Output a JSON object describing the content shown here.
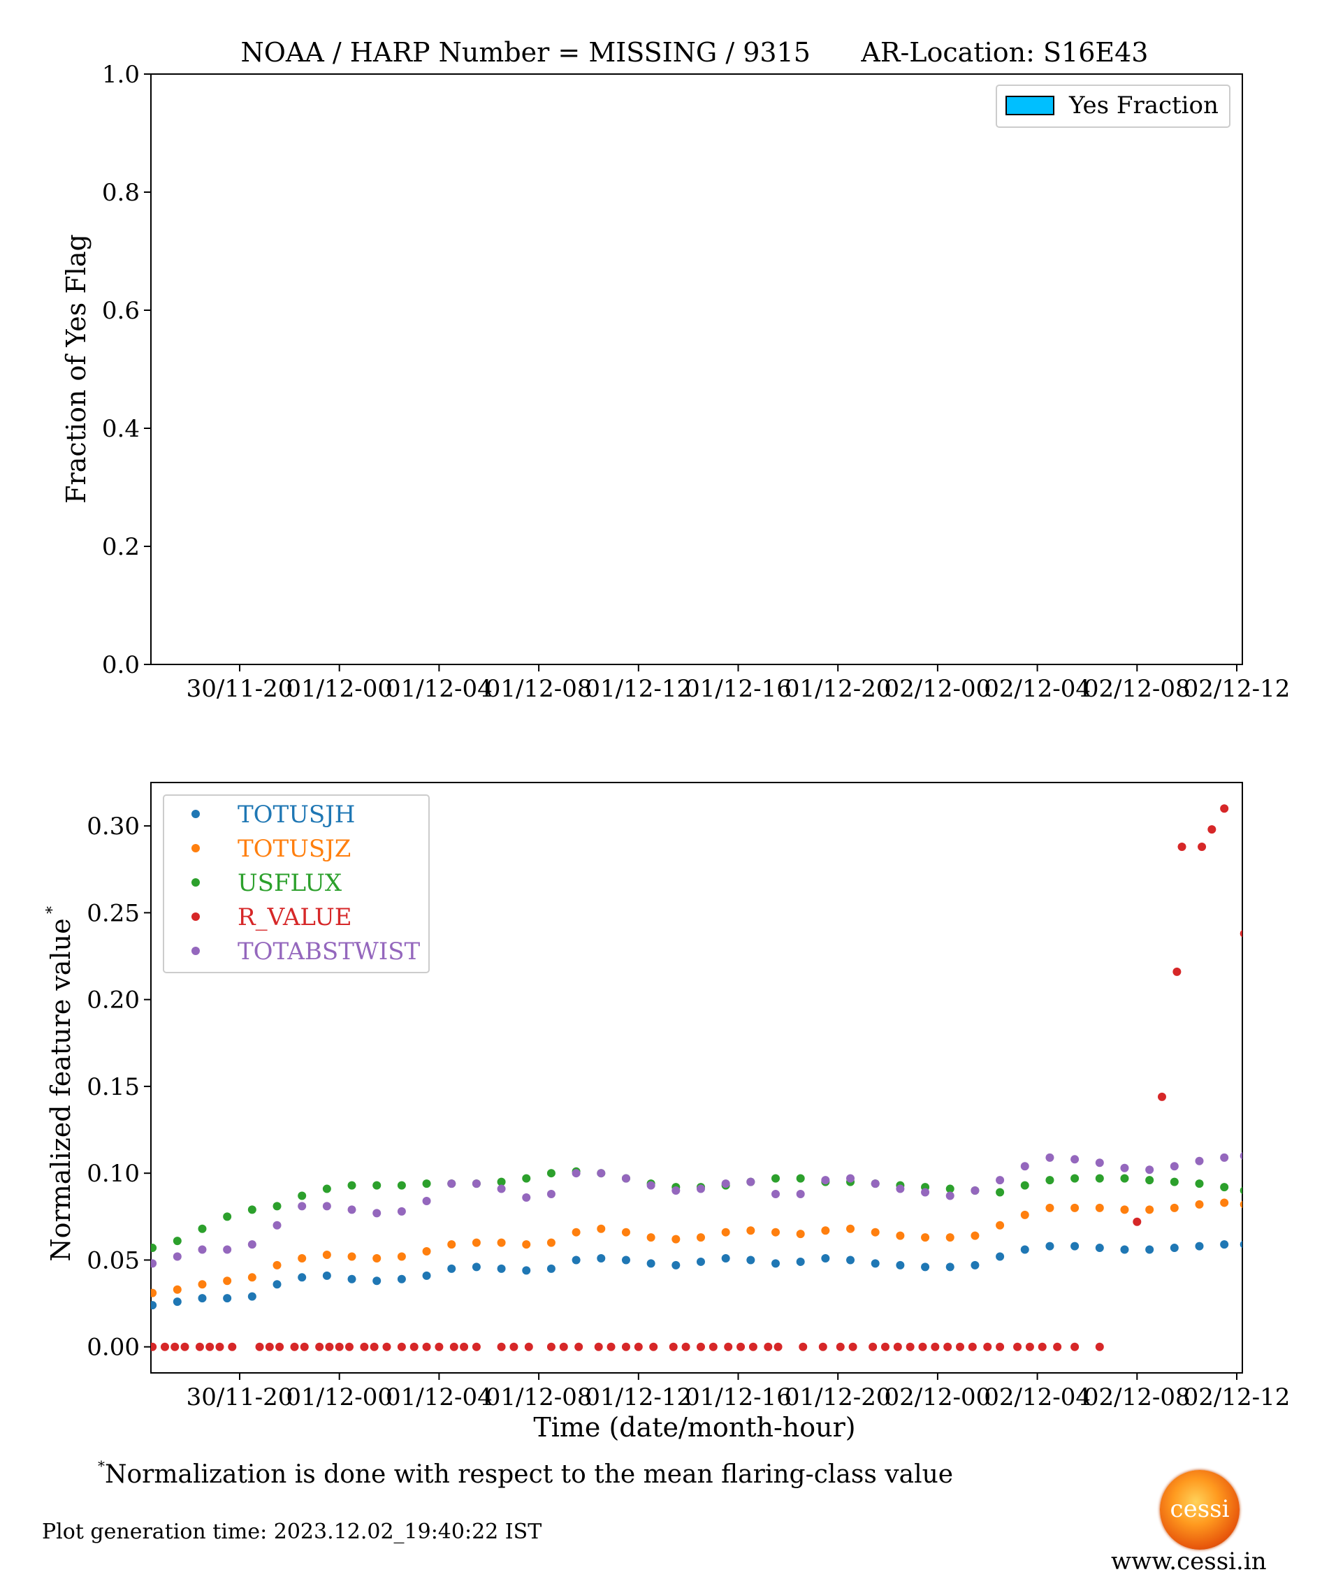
{
  "title": "NOAA / HARP Number = MISSING / 9315      AR-Location: S16E43",
  "top_chart": {
    "ylabel": "Fraction of Yes Flag",
    "legend_label": "Yes Fraction",
    "legend_color": "#00bfff",
    "yticks": [
      "0.0",
      "0.2",
      "0.4",
      "0.6",
      "0.8",
      "1.0"
    ],
    "xticks": [
      "30/11-20",
      "01/12-00",
      "01/12-04",
      "01/12-08",
      "01/12-12",
      "01/12-16",
      "01/12-20",
      "02/12-00",
      "02/12-04",
      "02/12-08",
      "02/12-12"
    ]
  },
  "bottom_chart": {
    "xlabel": "Time (date/month-hour)",
    "ylabel": "Normalized feature value",
    "ylabel_sup": "*",
    "yticks": [
      "0.00",
      "0.05",
      "0.10",
      "0.15",
      "0.20",
      "0.25",
      "0.30"
    ],
    "xticks": [
      "30/11-20",
      "01/12-00",
      "01/12-04",
      "01/12-08",
      "01/12-12",
      "01/12-16",
      "01/12-20",
      "02/12-00",
      "02/12-04",
      "02/12-08",
      "02/12-12"
    ]
  },
  "chart_data": [
    {
      "type": "bar",
      "title": "NOAA / HARP Number = MISSING / 9315      AR-Location: S16E43",
      "ylabel": "Fraction of Yes Flag",
      "ylim": [
        0,
        1.0
      ],
      "series": [
        {
          "name": "Yes Fraction",
          "values": [],
          "color": "#00bfff"
        }
      ],
      "legend_position": "top-right"
    },
    {
      "type": "scatter",
      "xlabel": "Time (date/month-hour)",
      "ylabel": "Normalized feature value*",
      "ylim": [
        -0.015,
        0.325
      ],
      "x_hours_from_30_11_20": [
        -3.5,
        0,
        4,
        8,
        12,
        16,
        20,
        24,
        28,
        32,
        36,
        40,
        40.3
      ],
      "legend_position": "top-left",
      "series": [
        {
          "name": "TOTUSJH",
          "color": "#1f77b4",
          "points": [
            [
              -3.5,
              0.024
            ],
            [
              -2.5,
              0.026
            ],
            [
              -1.5,
              0.028
            ],
            [
              -0.5,
              0.028
            ],
            [
              0.5,
              0.029
            ],
            [
              1.5,
              0.036
            ],
            [
              2.5,
              0.04
            ],
            [
              3.5,
              0.041
            ],
            [
              4.5,
              0.039
            ],
            [
              5.5,
              0.038
            ],
            [
              6.5,
              0.039
            ],
            [
              7.5,
              0.041
            ],
            [
              8.5,
              0.045
            ],
            [
              9.5,
              0.046
            ],
            [
              10.5,
              0.045
            ],
            [
              11.5,
              0.044
            ],
            [
              12.5,
              0.045
            ],
            [
              13.5,
              0.05
            ],
            [
              14.5,
              0.051
            ],
            [
              15.5,
              0.05
            ],
            [
              16.5,
              0.048
            ],
            [
              17.5,
              0.047
            ],
            [
              18.5,
              0.049
            ],
            [
              19.5,
              0.051
            ],
            [
              20.5,
              0.05
            ],
            [
              21.5,
              0.048
            ],
            [
              22.5,
              0.049
            ],
            [
              23.5,
              0.051
            ],
            [
              24.5,
              0.05
            ],
            [
              25.5,
              0.048
            ],
            [
              26.5,
              0.047
            ],
            [
              27.5,
              0.046
            ],
            [
              28.5,
              0.046
            ],
            [
              29.5,
              0.047
            ],
            [
              30.5,
              0.052
            ],
            [
              31.5,
              0.056
            ],
            [
              32.5,
              0.058
            ],
            [
              33.5,
              0.058
            ],
            [
              34.5,
              0.057
            ],
            [
              35.5,
              0.056
            ],
            [
              36.5,
              0.056
            ],
            [
              37.5,
              0.057
            ],
            [
              38.5,
              0.058
            ],
            [
              39.5,
              0.059
            ],
            [
              40.3,
              0.059
            ]
          ]
        },
        {
          "name": "TOTUSJZ",
          "color": "#ff7f0e",
          "points": [
            [
              -3.5,
              0.031
            ],
            [
              -2.5,
              0.033
            ],
            [
              -1.5,
              0.036
            ],
            [
              -0.5,
              0.038
            ],
            [
              0.5,
              0.04
            ],
            [
              1.5,
              0.047
            ],
            [
              2.5,
              0.051
            ],
            [
              3.5,
              0.053
            ],
            [
              4.5,
              0.052
            ],
            [
              5.5,
              0.051
            ],
            [
              6.5,
              0.052
            ],
            [
              7.5,
              0.055
            ],
            [
              8.5,
              0.059
            ],
            [
              9.5,
              0.06
            ],
            [
              10.5,
              0.06
            ],
            [
              11.5,
              0.059
            ],
            [
              12.5,
              0.06
            ],
            [
              13.5,
              0.066
            ],
            [
              14.5,
              0.068
            ],
            [
              15.5,
              0.066
            ],
            [
              16.5,
              0.063
            ],
            [
              17.5,
              0.062
            ],
            [
              18.5,
              0.063
            ],
            [
              19.5,
              0.066
            ],
            [
              20.5,
              0.067
            ],
            [
              21.5,
              0.066
            ],
            [
              22.5,
              0.065
            ],
            [
              23.5,
              0.067
            ],
            [
              24.5,
              0.068
            ],
            [
              25.5,
              0.066
            ],
            [
              26.5,
              0.064
            ],
            [
              27.5,
              0.063
            ],
            [
              28.5,
              0.063
            ],
            [
              29.5,
              0.064
            ],
            [
              30.5,
              0.07
            ],
            [
              31.5,
              0.076
            ],
            [
              32.5,
              0.08
            ],
            [
              33.5,
              0.08
            ],
            [
              34.5,
              0.08
            ],
            [
              35.5,
              0.079
            ],
            [
              36.5,
              0.079
            ],
            [
              37.5,
              0.08
            ],
            [
              38.5,
              0.082
            ],
            [
              39.5,
              0.083
            ],
            [
              40.3,
              0.082
            ]
          ]
        },
        {
          "name": "USFLUX",
          "color": "#2ca02c",
          "points": [
            [
              -3.5,
              0.057
            ],
            [
              -2.5,
              0.061
            ],
            [
              -1.5,
              0.068
            ],
            [
              -0.5,
              0.075
            ],
            [
              0.5,
              0.079
            ],
            [
              1.5,
              0.081
            ],
            [
              2.5,
              0.087
            ],
            [
              3.5,
              0.091
            ],
            [
              4.5,
              0.093
            ],
            [
              5.5,
              0.093
            ],
            [
              6.5,
              0.093
            ],
            [
              7.5,
              0.094
            ],
            [
              8.5,
              0.094
            ],
            [
              9.5,
              0.094
            ],
            [
              10.5,
              0.095
            ],
            [
              11.5,
              0.097
            ],
            [
              12.5,
              0.1
            ],
            [
              13.5,
              0.101
            ],
            [
              14.5,
              0.1
            ],
            [
              15.5,
              0.097
            ],
            [
              16.5,
              0.094
            ],
            [
              17.5,
              0.092
            ],
            [
              18.5,
              0.092
            ],
            [
              19.5,
              0.093
            ],
            [
              20.5,
              0.095
            ],
            [
              21.5,
              0.097
            ],
            [
              22.5,
              0.097
            ],
            [
              23.5,
              0.095
            ],
            [
              24.5,
              0.095
            ],
            [
              25.5,
              0.094
            ],
            [
              26.5,
              0.093
            ],
            [
              27.5,
              0.092
            ],
            [
              28.5,
              0.091
            ],
            [
              29.5,
              0.09
            ],
            [
              30.5,
              0.089
            ],
            [
              31.5,
              0.093
            ],
            [
              32.5,
              0.096
            ],
            [
              33.5,
              0.097
            ],
            [
              34.5,
              0.097
            ],
            [
              35.5,
              0.097
            ],
            [
              36.5,
              0.096
            ],
            [
              37.5,
              0.095
            ],
            [
              38.5,
              0.094
            ],
            [
              39.5,
              0.092
            ],
            [
              40.3,
              0.09
            ]
          ]
        },
        {
          "name": "R_VALUE",
          "color": "#d62728",
          "points": [
            [
              -3.5,
              0
            ],
            [
              -3,
              0
            ],
            [
              -2.6,
              0
            ],
            [
              -2.2,
              0
            ],
            [
              -1.6,
              0
            ],
            [
              -1.2,
              0
            ],
            [
              -0.8,
              0
            ],
            [
              -0.3,
              0
            ],
            [
              0.8,
              0
            ],
            [
              1.2,
              0
            ],
            [
              1.6,
              0
            ],
            [
              2.2,
              0
            ],
            [
              2.6,
              0
            ],
            [
              3.2,
              0
            ],
            [
              3.6,
              0
            ],
            [
              4,
              0
            ],
            [
              4.4,
              0
            ],
            [
              5,
              0
            ],
            [
              5.4,
              0
            ],
            [
              5.9,
              0
            ],
            [
              6.5,
              0
            ],
            [
              7,
              0
            ],
            [
              7.5,
              0
            ],
            [
              8,
              0
            ],
            [
              8.6,
              0
            ],
            [
              9,
              0
            ],
            [
              9.5,
              0
            ],
            [
              10.5,
              0
            ],
            [
              11,
              0
            ],
            [
              11.6,
              0
            ],
            [
              12.5,
              0
            ],
            [
              13,
              0
            ],
            [
              13.6,
              0
            ],
            [
              14.4,
              0
            ],
            [
              14.9,
              0
            ],
            [
              15.5,
              0
            ],
            [
              16,
              0
            ],
            [
              16.6,
              0
            ],
            [
              17.4,
              0
            ],
            [
              17.9,
              0
            ],
            [
              18.5,
              0
            ],
            [
              19,
              0
            ],
            [
              19.6,
              0
            ],
            [
              20.1,
              0
            ],
            [
              20.6,
              0
            ],
            [
              21.2,
              0
            ],
            [
              21.6,
              0
            ],
            [
              22.6,
              0
            ],
            [
              23.4,
              0
            ],
            [
              24.1,
              0
            ],
            [
              24.6,
              0
            ],
            [
              25.4,
              0
            ],
            [
              25.9,
              0
            ],
            [
              26.4,
              0
            ],
            [
              26.9,
              0
            ],
            [
              27.4,
              0
            ],
            [
              27.9,
              0
            ],
            [
              28.4,
              0
            ],
            [
              28.9,
              0
            ],
            [
              29.4,
              0
            ],
            [
              30,
              0
            ],
            [
              30.5,
              0
            ],
            [
              31.2,
              0
            ],
            [
              31.7,
              0
            ],
            [
              32.2,
              0
            ],
            [
              32.8,
              0
            ],
            [
              33.5,
              0
            ],
            [
              36,
              0.072
            ],
            [
              37,
              0.144
            ],
            [
              37.6,
              0.216
            ],
            [
              37.8,
              0.288
            ],
            [
              38.6,
              0.288
            ],
            [
              39,
              0.298
            ],
            [
              39.5,
              0.31
            ],
            [
              40.3,
              0.238
            ],
            [
              34.5,
              0.0
            ]
          ]
        },
        {
          "name": "TOTABSTWIST",
          "color": "#9467bd",
          "points": [
            [
              -3.5,
              0.048
            ],
            [
              -2.5,
              0.052
            ],
            [
              -1.5,
              0.056
            ],
            [
              -0.5,
              0.056
            ],
            [
              0.5,
              0.059
            ],
            [
              1.5,
              0.07
            ],
            [
              2.5,
              0.081
            ],
            [
              3.5,
              0.081
            ],
            [
              4.5,
              0.079
            ],
            [
              5.5,
              0.077
            ],
            [
              6.5,
              0.078
            ],
            [
              7.5,
              0.084
            ],
            [
              8.5,
              0.094
            ],
            [
              9.5,
              0.094
            ],
            [
              10.5,
              0.091
            ],
            [
              11.5,
              0.086
            ],
            [
              12.5,
              0.088
            ],
            [
              13.5,
              0.1
            ],
            [
              14.5,
              0.1
            ],
            [
              15.5,
              0.097
            ],
            [
              16.5,
              0.093
            ],
            [
              17.5,
              0.09
            ],
            [
              18.5,
              0.091
            ],
            [
              19.5,
              0.094
            ],
            [
              20.5,
              0.095
            ],
            [
              21.5,
              0.088
            ],
            [
              22.5,
              0.088
            ],
            [
              23.5,
              0.096
            ],
            [
              24.5,
              0.097
            ],
            [
              25.5,
              0.094
            ],
            [
              26.5,
              0.091
            ],
            [
              27.5,
              0.089
            ],
            [
              28.5,
              0.087
            ],
            [
              29.5,
              0.09
            ],
            [
              30.5,
              0.096
            ],
            [
              31.5,
              0.104
            ],
            [
              32.5,
              0.109
            ],
            [
              33.5,
              0.108
            ],
            [
              34.5,
              0.106
            ],
            [
              35.5,
              0.103
            ],
            [
              36.5,
              0.102
            ],
            [
              37.5,
              0.104
            ],
            [
              38.5,
              0.107
            ],
            [
              39.5,
              0.109
            ],
            [
              40.3,
              0.11
            ]
          ]
        }
      ]
    }
  ],
  "footnote": {
    "sup": "*",
    "text": "Normalization is done with respect to the mean flaring-class value"
  },
  "generation_time": "Plot generation time: 2023.12.02_19:40:22 IST",
  "logo_text": "cessi",
  "website": "www.cessi.in"
}
